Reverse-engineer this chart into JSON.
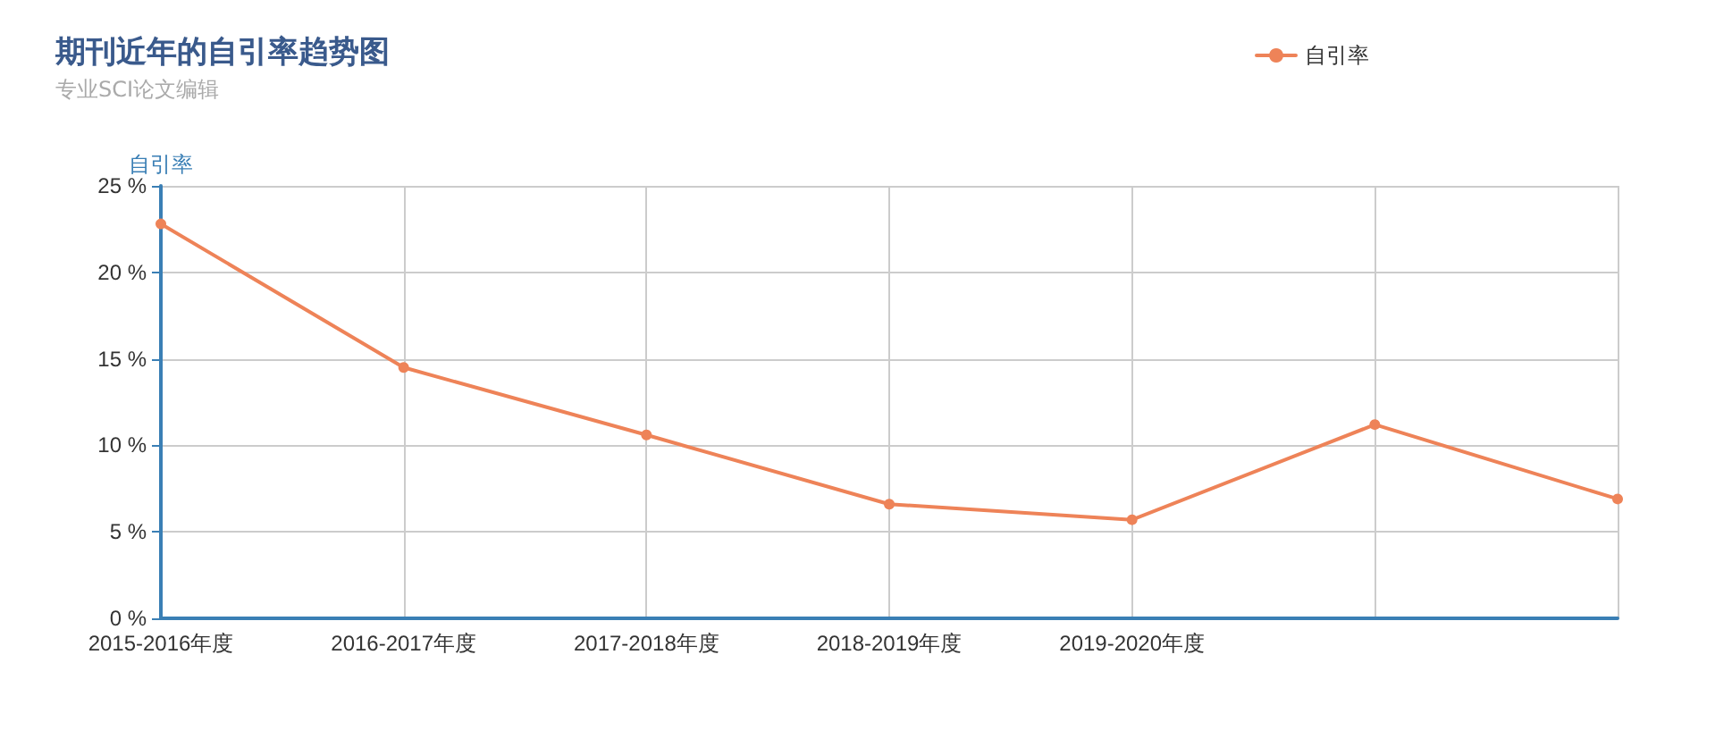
{
  "chart_data": {
    "type": "line",
    "title": "期刊近年的自引率趋势图",
    "subtitle": "专业SCI论文编辑",
    "ylabel": "自引率",
    "categories": [
      "2015-2016年度",
      "2016-2017年度",
      "2017-2018年度",
      "2018-2019年度",
      "2019-2020年度",
      null,
      null
    ],
    "series": [
      {
        "name": "自引率",
        "color": "#ee8358",
        "values": [
          22.8,
          14.5,
          10.6,
          6.6,
          5.7,
          11.2,
          6.9
        ]
      }
    ],
    "ylim": [
      0,
      25
    ],
    "yticks": [
      {
        "value": 0,
        "label": "0 %"
      },
      {
        "value": 5,
        "label": "5 %"
      },
      {
        "value": 10,
        "label": "10 %"
      },
      {
        "value": 15,
        "label": "15 %"
      },
      {
        "value": 20,
        "label": "20 %"
      },
      {
        "value": 25,
        "label": "25 %"
      }
    ],
    "grid": true,
    "legend": "top right",
    "marker": "circle",
    "line_style": "solid"
  }
}
